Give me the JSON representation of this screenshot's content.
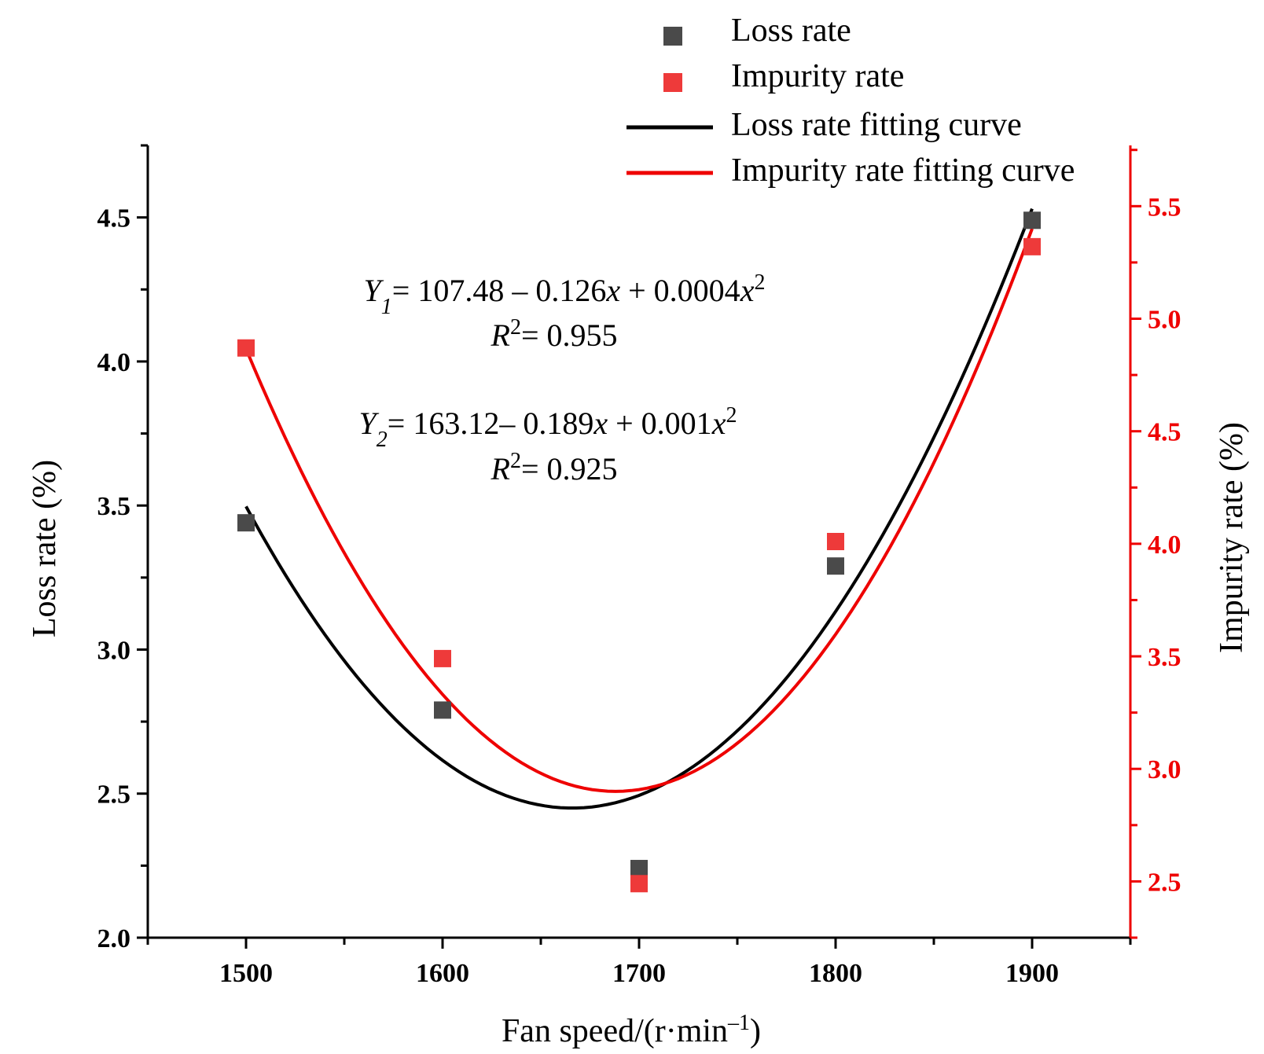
{
  "chart_data": {
    "type": "scatter",
    "title": "",
    "xlabel": "Fan speed/(r·min⁻¹)",
    "ylabel_left": "Loss rate (%)",
    "ylabel_right": "Impurity rate (%)",
    "xlim": [
      1450,
      1950
    ],
    "ylim_left": [
      2.0,
      4.75
    ],
    "ylim_right": [
      2.25,
      5.77
    ],
    "x_ticks": [
      1500,
      1600,
      1700,
      1800,
      1900
    ],
    "y_left_ticks": [
      2.0,
      2.5,
      3.0,
      3.5,
      4.0,
      4.5
    ],
    "y_right_ticks": [
      2.5,
      3.0,
      3.5,
      4.0,
      4.5,
      5.0,
      5.5
    ],
    "x_tick_labels": [
      "1500",
      "1600",
      "1700",
      "1800",
      "1900"
    ],
    "y_left_tick_labels": [
      "2.0",
      "2.5",
      "3.0",
      "3.5",
      "4.0",
      "4.5"
    ],
    "y_right_tick_labels": [
      "2.5",
      "3.0",
      "3.5",
      "4.0",
      "4.5",
      "5.0",
      "5.5"
    ],
    "series": [
      {
        "name": "Loss rate",
        "axis": "left",
        "color": "#4a4a4a",
        "x": [
          1500,
          1600,
          1700,
          1800,
          1900
        ],
        "values": [
          3.44,
          2.79,
          2.24,
          3.29,
          4.49
        ]
      },
      {
        "name": "Impurity rate",
        "axis": "right",
        "color": "#ee3a3a",
        "x": [
          1500,
          1600,
          1700,
          1800,
          1900
        ],
        "values": [
          4.87,
          3.49,
          2.49,
          4.01,
          5.32
        ]
      }
    ],
    "fits": [
      {
        "name": "Loss rate fitting curve",
        "axis": "left",
        "color": "#000000",
        "x_range": [
          1500,
          1900
        ],
        "vertex": [
          1666,
          2.45
        ],
        "end_point": [
          1900,
          4.53
        ]
      },
      {
        "name": "Impurity rate fitting curve",
        "axis": "right",
        "color": "#ee0000",
        "x_range": [
          1500,
          1900
        ],
        "vertex": [
          1688,
          2.9
        ],
        "end_point": [
          1900,
          5.4
        ]
      }
    ],
    "legend": {
      "position": "top-right",
      "items": [
        "Loss rate",
        "Impurity rate",
        "Loss rate fitting curve",
        "Impurity rate fitting curve"
      ]
    },
    "annotations": {
      "eq1": {
        "y": "Y",
        "sub": "1",
        "body": "= 107.48 – 0.126",
        "var": "x",
        "tail": " + 0.0004",
        "var2": "x",
        "sup": "2"
      },
      "r1": {
        "r": "R",
        "sup": "2",
        "body": "= 0.955"
      },
      "eq2": {
        "y": "Y",
        "sub": "2",
        "body": "= 163.12– 0.189",
        "var": "x",
        "tail": " + 0.001",
        "var2": "x",
        "sup": "2"
      },
      "r2": {
        "r": "R",
        "sup": "2",
        "body": "= 0.925"
      }
    }
  }
}
